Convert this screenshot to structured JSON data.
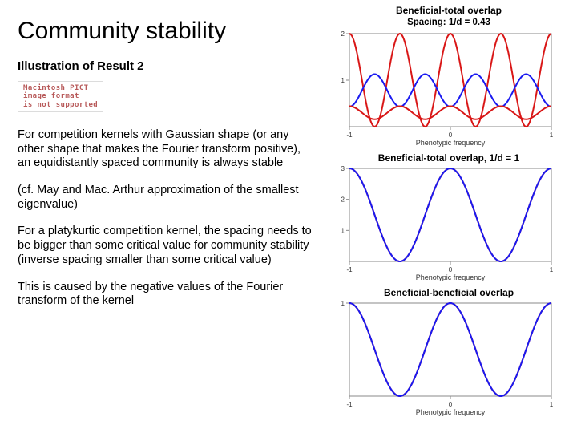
{
  "title": "Community stability",
  "subtitle": "Illustration of Result 2",
  "pict": {
    "l1": "Macintosh PICT",
    "l2": "image format",
    "l3": "is not supported"
  },
  "para1": "For competition kernels with Gaussian shape (or any other shape that makes the Fourier transform positive), an equidistantly spaced community is always stable",
  "para2": "(cf. May and Mac. Arthur approximation  of the smallest eigenvalue)",
  "para3": "For a platykurtic competition kernel, the spacing needs to be bigger than some critical value for community stability (inverse spacing smaller than some critical value)",
  "para4": "This is caused by the negative values of the Fourier transform of the kernel",
  "charts": {
    "xlabel": "Phenotypic frequency",
    "c1": {
      "header": "Beneficial-total overlap",
      "sub": "Spacing: 1/d = 0.43",
      "xlim": [
        -1,
        1
      ],
      "ylim": [
        0,
        2
      ],
      "xticks": [
        -1,
        0,
        1
      ],
      "yticks": [
        1,
        2
      ],
      "series": [
        {
          "type": "cos",
          "color": "#d91616",
          "amp": 1.0,
          "offset": 1.0,
          "freq": 4.0,
          "phase": 0,
          "width": 2
        },
        {
          "type": "cos",
          "color": "#1a1af0",
          "amp": 0.35,
          "offset": 0.78,
          "freq": 4.0,
          "phase": 3.14159,
          "width": 2
        },
        {
          "type": "cos",
          "color": "#d91616",
          "amp": 0.14,
          "offset": 0.3,
          "freq": 4.0,
          "phase": 0,
          "width": 2
        }
      ]
    },
    "c2": {
      "header": "Beneficial-total overlap, 1/d = 1",
      "xlim": [
        -1,
        1
      ],
      "ylim": [
        0,
        3
      ],
      "xticks": [
        -1,
        0,
        1
      ],
      "yticks": [
        1,
        2,
        3
      ],
      "series": [
        {
          "type": "cos",
          "color": "#d91616",
          "amp": 1.5,
          "offset": 1.5,
          "freq": 2.0,
          "phase": 0,
          "width": 2
        },
        {
          "type": "cos",
          "color": "#1a1af0",
          "amp": 1.5,
          "offset": 1.5,
          "freq": 2.0,
          "phase": 0,
          "width": 2,
          "overlay": true
        }
      ]
    },
    "c3": {
      "header": "Beneficial-beneficial overlap",
      "xlim": [
        -1,
        1
      ],
      "ylim": [
        0,
        1.0
      ],
      "xticks": [
        -1,
        0,
        1
      ],
      "yticks": [
        1
      ],
      "series": [
        {
          "type": "cos",
          "color": "#d91616",
          "amp": 0.5,
          "offset": 0.5,
          "freq": 2.0,
          "phase": 0,
          "width": 2
        },
        {
          "type": "cos",
          "color": "#1a1af0",
          "amp": 0.5,
          "offset": 0.5,
          "freq": 2.0,
          "phase": 0,
          "width": 2,
          "overlay": true
        }
      ]
    },
    "axis_color": "#888888",
    "bg": "#ffffff"
  }
}
